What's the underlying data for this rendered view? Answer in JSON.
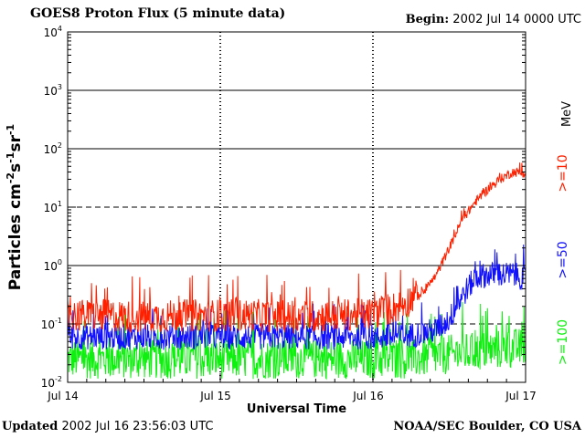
{
  "header": {
    "title": "GOES8 Proton Flux (5 minute data)",
    "begin_label": "Begin:",
    "begin_value": "2002 Jul 14 0000 UTC"
  },
  "footer": {
    "updated_label": "Updated",
    "updated_value": "2002 Jul 16 23:56:03 UTC",
    "credit": "NOAA/SEC Boulder, CO USA"
  },
  "colors": {
    "ge10": "#ff2000",
    "ge50": "#1010ff",
    "ge100": "#10f010"
  },
  "chart_data": {
    "type": "line",
    "title": "GOES8 Proton Flux (5 minute data)",
    "xlabel": "Universal Time",
    "ylabel": "Particles cm-2s-1sr-1",
    "yscale": "log",
    "ylim": [
      0.01,
      10000
    ],
    "xlim": [
      0,
      72
    ],
    "x_unit": "hours since 2002 Jul 14 0000 UTC",
    "x_ticks": [
      "Jul 14",
      "Jul 15",
      "Jul 16",
      "Jul 17"
    ],
    "y_ticks": [
      "10-2",
      "10-1",
      "100",
      "101",
      "102",
      "103",
      "104"
    ],
    "unit_label": "MeV",
    "series": [
      {
        "name": ">=10",
        "color": "#ff2000",
        "x": [
          0,
          6,
          12,
          18,
          24,
          30,
          36,
          42,
          48,
          52,
          56,
          58,
          60,
          62,
          64,
          66,
          68,
          70,
          72
        ],
        "values": [
          0.14,
          0.14,
          0.13,
          0.14,
          0.14,
          0.14,
          0.13,
          0.14,
          0.15,
          0.2,
          0.35,
          0.7,
          2.0,
          6.0,
          12,
          20,
          30,
          40,
          38
        ]
      },
      {
        "name": ">=50",
        "color": "#1010ff",
        "x": [
          0,
          6,
          12,
          18,
          24,
          30,
          36,
          42,
          48,
          52,
          56,
          58,
          60,
          62,
          64,
          66,
          68,
          70,
          72
        ],
        "values": [
          0.06,
          0.06,
          0.06,
          0.06,
          0.06,
          0.06,
          0.06,
          0.06,
          0.06,
          0.06,
          0.07,
          0.08,
          0.12,
          0.3,
          0.6,
          0.7,
          0.7,
          0.7,
          0.6
        ]
      },
      {
        "name": ">=100",
        "color": "#10f010",
        "x": [
          0,
          6,
          12,
          18,
          24,
          30,
          36,
          42,
          48,
          54,
          60,
          66,
          72
        ],
        "values": [
          0.025,
          0.025,
          0.025,
          0.025,
          0.025,
          0.025,
          0.025,
          0.025,
          0.025,
          0.025,
          0.03,
          0.035,
          0.04
        ]
      }
    ],
    "grid": "solid at 10^0, 10^2, 10^3; dashed at 10^-1, 10^1; dotted at day boundaries",
    "legend": "right, rotated vertical"
  }
}
